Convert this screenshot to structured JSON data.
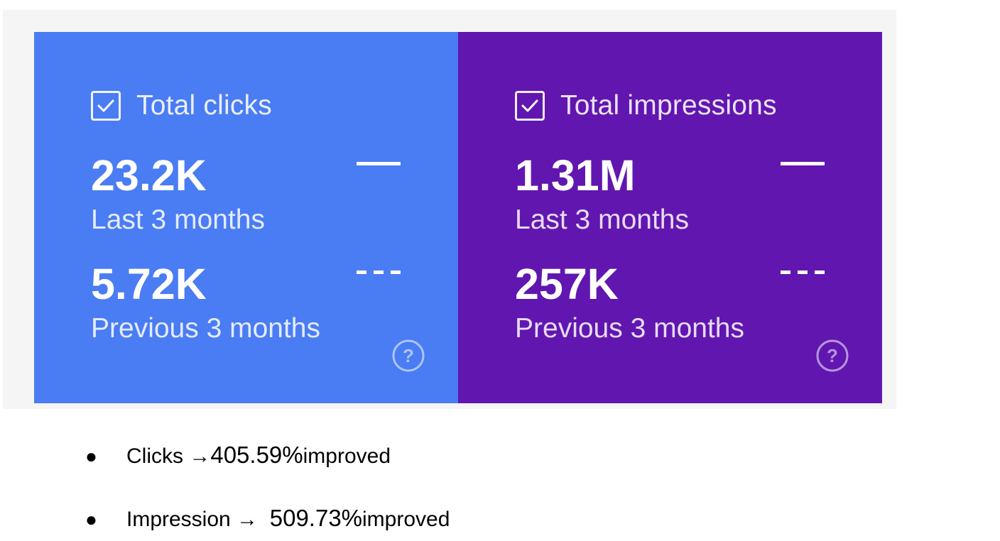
{
  "cards": [
    {
      "title": "Total clicks",
      "checked": true,
      "current_value": "23.2K",
      "current_label": "Last 3 months",
      "previous_value": "5.72K",
      "previous_label": "Previous 3 months",
      "color": "#4a7cf3"
    },
    {
      "title": "Total impressions",
      "checked": true,
      "current_value": "1.31M",
      "current_label": "Last 3 months",
      "previous_value": "257K",
      "previous_label": "Previous 3 months",
      "color": "#6116b0"
    }
  ],
  "icons": {
    "checkbox": "checkbox-checked-icon",
    "help": "help-circle-icon",
    "current_legend": "solid-line-icon",
    "previous_legend": "dashed-line-icon"
  },
  "bullets": [
    {
      "dot": "●",
      "prefix": "Clicks → ",
      "percent": "405.59%",
      "suffix": " improved"
    },
    {
      "dot": "●",
      "prefix": "Impression →  ",
      "percent": "509.73%",
      "suffix": " improved"
    }
  ]
}
